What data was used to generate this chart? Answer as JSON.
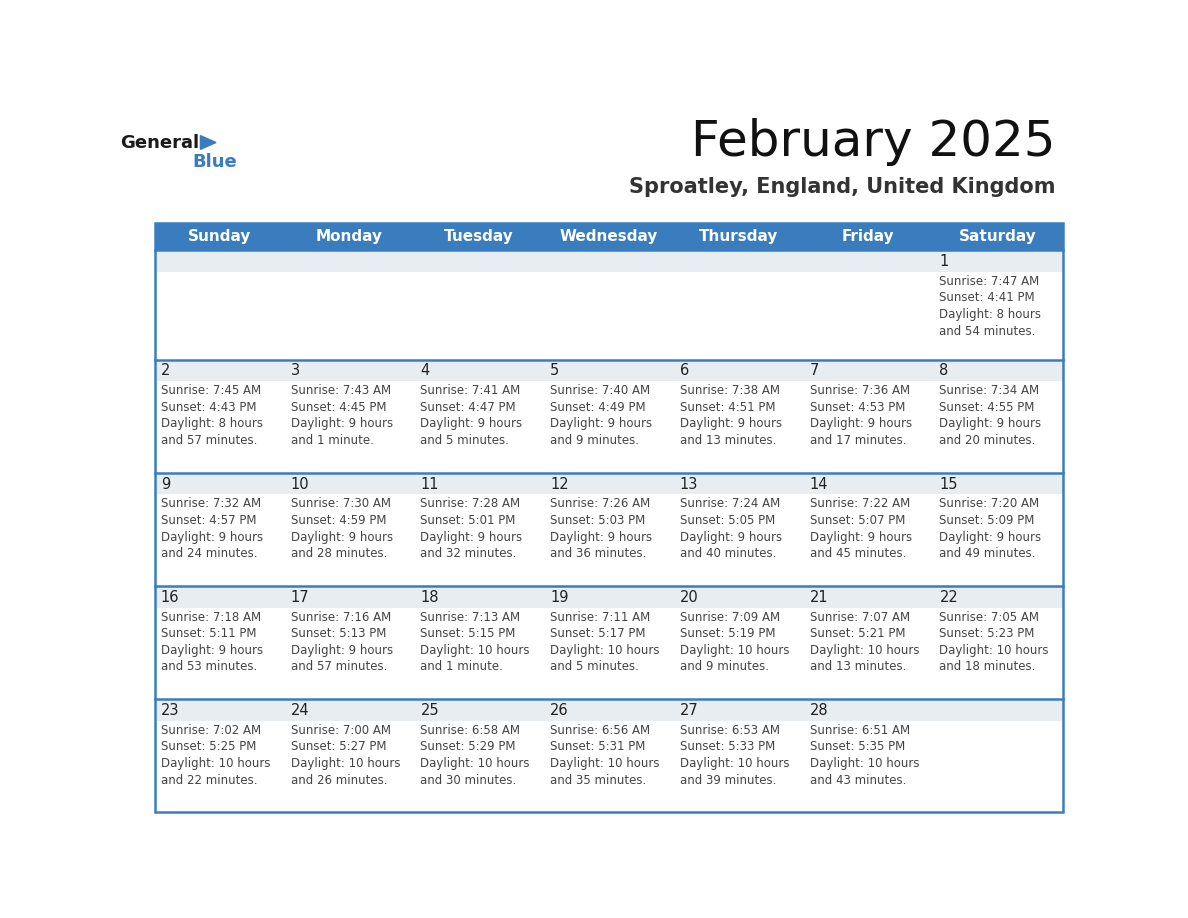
{
  "title": "February 2025",
  "subtitle": "Sproatley, England, United Kingdom",
  "header_bg": "#3a7dbf",
  "header_text": "#ffffff",
  "day_names": [
    "Sunday",
    "Monday",
    "Tuesday",
    "Wednesday",
    "Thursday",
    "Friday",
    "Saturday"
  ],
  "cell_top_bg": "#e8edf2",
  "cell_body_bg": "#ffffff",
  "border_color": "#3a7dbf",
  "day_number_color": "#222222",
  "info_text_color": "#444444",
  "calendar_data": [
    [
      null,
      null,
      null,
      null,
      null,
      null,
      {
        "day": 1,
        "sunrise": "7:47 AM",
        "sunset": "4:41 PM",
        "daylight_line1": "8 hours",
        "daylight_line2": "and 54 minutes."
      }
    ],
    [
      {
        "day": 2,
        "sunrise": "7:45 AM",
        "sunset": "4:43 PM",
        "daylight_line1": "8 hours",
        "daylight_line2": "and 57 minutes."
      },
      {
        "day": 3,
        "sunrise": "7:43 AM",
        "sunset": "4:45 PM",
        "daylight_line1": "9 hours",
        "daylight_line2": "and 1 minute."
      },
      {
        "day": 4,
        "sunrise": "7:41 AM",
        "sunset": "4:47 PM",
        "daylight_line1": "9 hours",
        "daylight_line2": "and 5 minutes."
      },
      {
        "day": 5,
        "sunrise": "7:40 AM",
        "sunset": "4:49 PM",
        "daylight_line1": "9 hours",
        "daylight_line2": "and 9 minutes."
      },
      {
        "day": 6,
        "sunrise": "7:38 AM",
        "sunset": "4:51 PM",
        "daylight_line1": "9 hours",
        "daylight_line2": "and 13 minutes."
      },
      {
        "day": 7,
        "sunrise": "7:36 AM",
        "sunset": "4:53 PM",
        "daylight_line1": "9 hours",
        "daylight_line2": "and 17 minutes."
      },
      {
        "day": 8,
        "sunrise": "7:34 AM",
        "sunset": "4:55 PM",
        "daylight_line1": "9 hours",
        "daylight_line2": "and 20 minutes."
      }
    ],
    [
      {
        "day": 9,
        "sunrise": "7:32 AM",
        "sunset": "4:57 PM",
        "daylight_line1": "9 hours",
        "daylight_line2": "and 24 minutes."
      },
      {
        "day": 10,
        "sunrise": "7:30 AM",
        "sunset": "4:59 PM",
        "daylight_line1": "9 hours",
        "daylight_line2": "and 28 minutes."
      },
      {
        "day": 11,
        "sunrise": "7:28 AM",
        "sunset": "5:01 PM",
        "daylight_line1": "9 hours",
        "daylight_line2": "and 32 minutes."
      },
      {
        "day": 12,
        "sunrise": "7:26 AM",
        "sunset": "5:03 PM",
        "daylight_line1": "9 hours",
        "daylight_line2": "and 36 minutes."
      },
      {
        "day": 13,
        "sunrise": "7:24 AM",
        "sunset": "5:05 PM",
        "daylight_line1": "9 hours",
        "daylight_line2": "and 40 minutes."
      },
      {
        "day": 14,
        "sunrise": "7:22 AM",
        "sunset": "5:07 PM",
        "daylight_line1": "9 hours",
        "daylight_line2": "and 45 minutes."
      },
      {
        "day": 15,
        "sunrise": "7:20 AM",
        "sunset": "5:09 PM",
        "daylight_line1": "9 hours",
        "daylight_line2": "and 49 minutes."
      }
    ],
    [
      {
        "day": 16,
        "sunrise": "7:18 AM",
        "sunset": "5:11 PM",
        "daylight_line1": "9 hours",
        "daylight_line2": "and 53 minutes."
      },
      {
        "day": 17,
        "sunrise": "7:16 AM",
        "sunset": "5:13 PM",
        "daylight_line1": "9 hours",
        "daylight_line2": "and 57 minutes."
      },
      {
        "day": 18,
        "sunrise": "7:13 AM",
        "sunset": "5:15 PM",
        "daylight_line1": "10 hours",
        "daylight_line2": "and 1 minute."
      },
      {
        "day": 19,
        "sunrise": "7:11 AM",
        "sunset": "5:17 PM",
        "daylight_line1": "10 hours",
        "daylight_line2": "and 5 minutes."
      },
      {
        "day": 20,
        "sunrise": "7:09 AM",
        "sunset": "5:19 PM",
        "daylight_line1": "10 hours",
        "daylight_line2": "and 9 minutes."
      },
      {
        "day": 21,
        "sunrise": "7:07 AM",
        "sunset": "5:21 PM",
        "daylight_line1": "10 hours",
        "daylight_line2": "and 13 minutes."
      },
      {
        "day": 22,
        "sunrise": "7:05 AM",
        "sunset": "5:23 PM",
        "daylight_line1": "10 hours",
        "daylight_line2": "and 18 minutes."
      }
    ],
    [
      {
        "day": 23,
        "sunrise": "7:02 AM",
        "sunset": "5:25 PM",
        "daylight_line1": "10 hours",
        "daylight_line2": "and 22 minutes."
      },
      {
        "day": 24,
        "sunrise": "7:00 AM",
        "sunset": "5:27 PM",
        "daylight_line1": "10 hours",
        "daylight_line2": "and 26 minutes."
      },
      {
        "day": 25,
        "sunrise": "6:58 AM",
        "sunset": "5:29 PM",
        "daylight_line1": "10 hours",
        "daylight_line2": "and 30 minutes."
      },
      {
        "day": 26,
        "sunrise": "6:56 AM",
        "sunset": "5:31 PM",
        "daylight_line1": "10 hours",
        "daylight_line2": "and 35 minutes."
      },
      {
        "day": 27,
        "sunrise": "6:53 AM",
        "sunset": "5:33 PM",
        "daylight_line1": "10 hours",
        "daylight_line2": "and 39 minutes."
      },
      {
        "day": 28,
        "sunrise": "6:51 AM",
        "sunset": "5:35 PM",
        "daylight_line1": "10 hours",
        "daylight_line2": "and 43 minutes."
      },
      null
    ]
  ]
}
